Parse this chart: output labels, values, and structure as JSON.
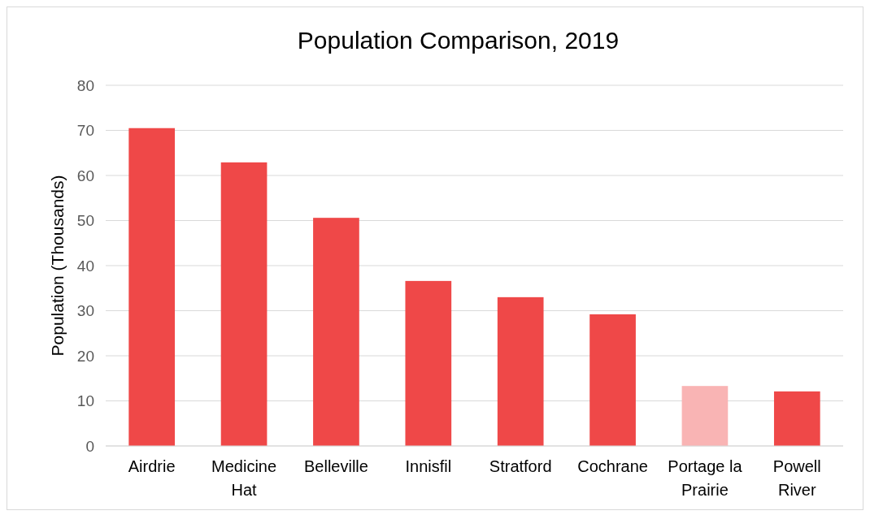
{
  "chart_data": {
    "type": "bar",
    "title": "Population Comparison, 2019",
    "ylabel": "Population (Thousands)",
    "categories": [
      "Airdrie",
      "Medicine Hat",
      "Belleville",
      "Innisfil",
      "Stratford",
      "Cochrane",
      "Portage la Prairie",
      "Powell River"
    ],
    "values": [
      70.5,
      62.9,
      50.6,
      36.6,
      33.0,
      29.2,
      13.3,
      12.1
    ],
    "colors": [
      "#ef4848",
      "#ef4848",
      "#ef4848",
      "#ef4848",
      "#ef4848",
      "#ef4848",
      "#f9b4b4",
      "#ef4848"
    ],
    "ylim": [
      0,
      80
    ],
    "yticks": [
      0,
      10,
      20,
      30,
      40,
      50,
      60,
      70,
      80
    ],
    "grid": "y"
  }
}
